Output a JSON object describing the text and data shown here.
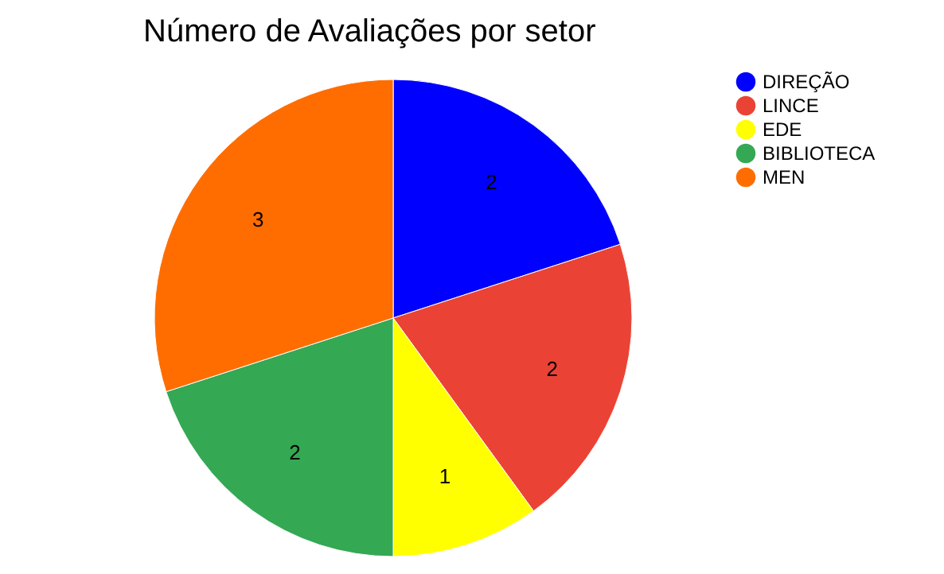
{
  "chart_data": {
    "type": "pie",
    "title": "Número de Avaliações por setor",
    "categories": [
      "DIREÇÃO",
      "LINCE",
      "EDE",
      "BIBLIOTECA",
      "MEN"
    ],
    "values": [
      2,
      2,
      1,
      2,
      3
    ],
    "colors": [
      "#0000ff",
      "#ea4335",
      "#ffff00",
      "#34a853",
      "#ff6d01"
    ],
    "data_labels": true,
    "legend": "top right"
  }
}
